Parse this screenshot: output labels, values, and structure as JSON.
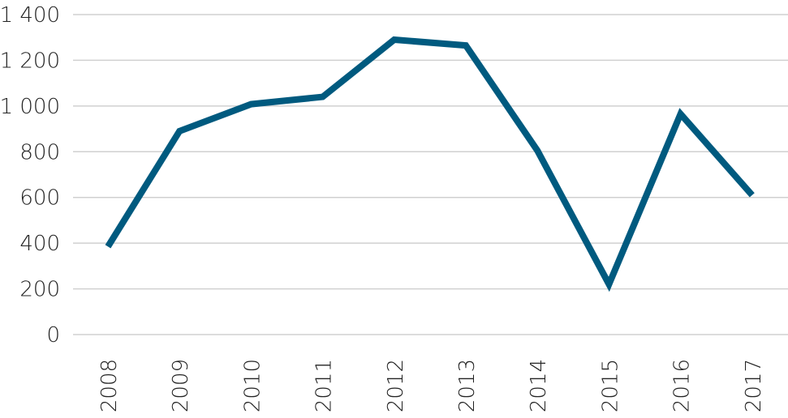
{
  "chart_data": {
    "type": "line",
    "title": "",
    "xlabel": "",
    "ylabel": "",
    "categories": [
      "2008",
      "2009",
      "2010",
      "2011",
      "2012",
      "2013",
      "2014",
      "2015",
      "2016",
      "2017"
    ],
    "series": [
      {
        "values": [
          385,
          890,
          1008,
          1040,
          1290,
          1265,
          805,
          220,
          965,
          610
        ],
        "color": "#005a7f"
      }
    ],
    "ylim": [
      0,
      1400
    ],
    "yticks": [
      0,
      200,
      400,
      600,
      800,
      1000,
      1200,
      1400
    ],
    "ytick_labels": [
      "0",
      "200",
      "400",
      "600",
      "800",
      "1 000",
      "1 200",
      "1 400"
    ],
    "grid": true,
    "legend": "none"
  }
}
